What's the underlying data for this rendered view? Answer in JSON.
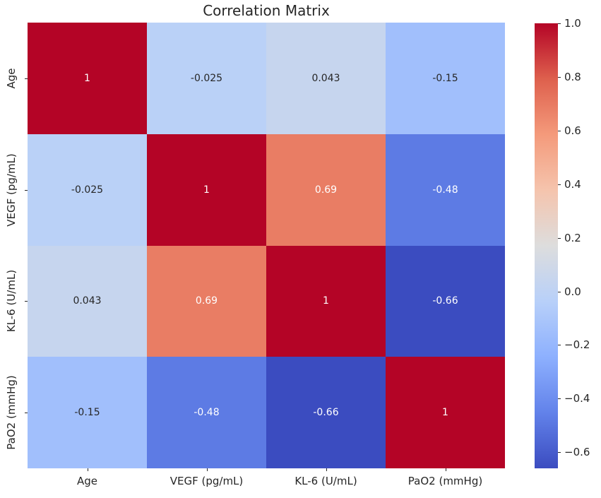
{
  "title": "Correlation Matrix",
  "chart_data": {
    "type": "heatmap",
    "title": "Correlation Matrix",
    "labels": [
      "Age",
      "VEGF (pg/mL)",
      "KL-6 (U/mL)",
      "PaO2 (mmHg)"
    ],
    "matrix": [
      [
        1,
        -0.025,
        0.043,
        -0.15
      ],
      [
        -0.025,
        1,
        0.69,
        -0.48
      ],
      [
        0.043,
        0.69,
        1,
        -0.66
      ],
      [
        -0.15,
        -0.48,
        -0.66,
        1
      ]
    ],
    "annotations": [
      [
        "1",
        "-0.025",
        "0.043",
        "-0.15"
      ],
      [
        "-0.025",
        "1",
        "0.69",
        "-0.48"
      ],
      [
        "0.043",
        "0.69",
        "1",
        "-0.66"
      ],
      [
        "-0.15",
        "-0.48",
        "-0.66",
        "1"
      ]
    ],
    "vmin": -0.66,
    "vmax": 1.0,
    "colormap": {
      "name": "coolwarm",
      "anchors": [
        "#3B4CC0",
        "#6282EA",
        "#8DB0FE",
        "#B8D0F9",
        "#DDDDDD",
        "#F5C4AD",
        "#F49A7B",
        "#DE604D",
        "#B40426"
      ]
    },
    "colorbar_ticks": [
      "1.0",
      "0.8",
      "0.6",
      "0.4",
      "0.2",
      "0.0",
      "−0.2",
      "−0.4",
      "−0.6"
    ],
    "colorbar_tick_values": [
      1.0,
      0.8,
      0.6,
      0.4,
      0.2,
      0.0,
      -0.2,
      -0.4,
      -0.6
    ],
    "annotation_colors": {
      "dark": "#262626",
      "light": "#ffffff"
    },
    "legend_position": "right",
    "grid": false
  }
}
